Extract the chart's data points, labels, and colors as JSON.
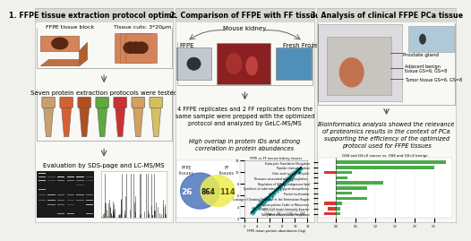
{
  "panel1_title": "1. FFPE tissue extraction protocol optimization",
  "panel2_title": "2. Comparison of FFPE with FF tissue",
  "panel3_title": "3. Analysis of clinical FFPE PCa tissue",
  "panel1_texts": [
    "FFPE tissue block",
    "Tissue cuts: 3*20μm",
    "Seven protein extraction protocols were tested",
    "Evaluation by SDS-page and LC-MS/MS"
  ],
  "panel2_texts": [
    "Mouse kidney",
    "FFPE",
    "Fresh Frozen",
    "4 FFPE replicates and 2 FF replicates from the\nsame sample were prepped with the optimized\nprotocol and analyzed by GeLC-MS/MS",
    "High overlap in protein IDs and strong\ncorrelation in protein abundances",
    "FFPE vs FF mouse kidney tissues",
    "FFPE mean protein abundances (log)"
  ],
  "panel3_texts": [
    "Prostate gland",
    "Adjacent benign\ntissue GS=6, GS=8",
    "Tumor tissue GS=6, GS=8",
    "Bioinformatics analysis showed the relevance\nof proteomics results in the context of PCa\nsupporting the efficiency of the optimized\nprotocol used for FFPE tissues",
    "GS8 and GS=6 cancer vs. GS8 and GS=6 benign"
  ],
  "venn_left_label": "FFPE\ntissues",
  "venn_right_label": "FF\ntissues",
  "venn_left_num": "26",
  "venn_center_num": "864",
  "venn_right_num": "114",
  "venn_left_color": "#4f77be",
  "venn_right_color": "#eded50",
  "bar_categories": [
    "Eukaryotic Translation Elongation",
    "Peptide chain elongation",
    "Citric acid cycle (TCA cycle)",
    "Diseases associated with glycosylation...",
    "Regulation of SLR by endogenous lipid",
    "Synthesis of substrates in N-glycan biosynthesis",
    "Protein localization",
    "Leakage of Growing Transcript fr. the Termination Region",
    "Selenocysteine Codes in Ribosomes",
    "SARS-CoV Innate Immunity Evasion",
    "Fatty Acid-related Innate Responses"
  ],
  "bar_values_pos": [
    2.8,
    2.5,
    0.4,
    0.3,
    1.2,
    0.8,
    0.4,
    0.8,
    0.15,
    0.12,
    0.1
  ],
  "bar_values_neg": [
    0.0,
    0.0,
    -0.3,
    0.0,
    0.0,
    0.0,
    0.0,
    0.0,
    -0.3,
    -0.2,
    -0.3
  ],
  "bg_color": "#f0f0ec",
  "panel_bg": "#ffffff",
  "header_bg": "#d8d8d0",
  "border_color": "#bbbbbb",
  "title_fontsize": 5.8,
  "text_fontsize": 5.0,
  "tube_colors": [
    "#c8a070",
    "#d46030",
    "#b05020",
    "#60a840",
    "#cc3030",
    "#d4a060",
    "#d4c060"
  ],
  "scatter_color": "#008888"
}
